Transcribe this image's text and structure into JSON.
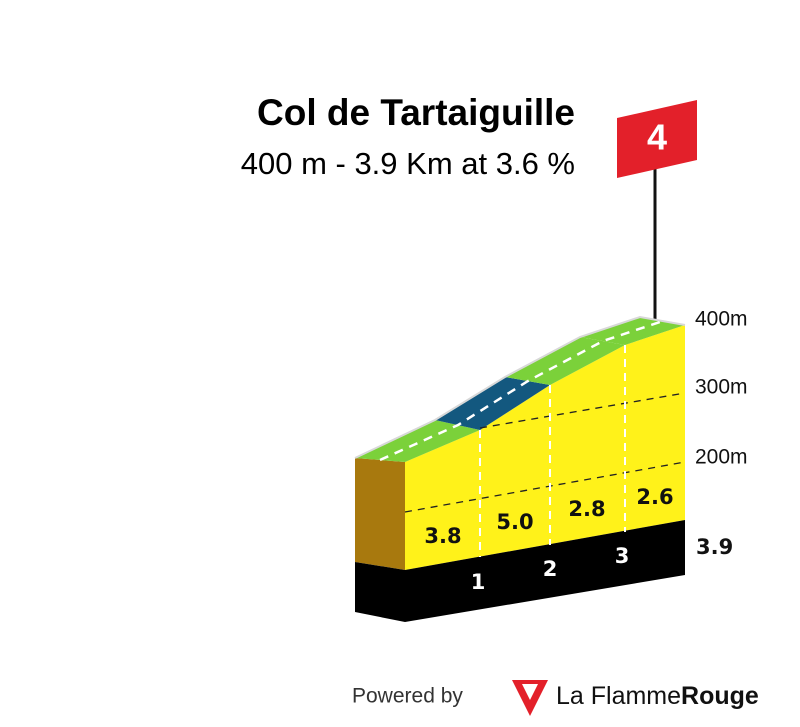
{
  "header": {
    "title": "Col de Tartaiguille",
    "subtitle": "400 m - 3.9 Km at 3.6 %",
    "category": "4"
  },
  "elevation_labels": [
    "400m",
    "300m",
    "200m"
  ],
  "gradients": [
    "3.8",
    "5.0",
    "2.8",
    "2.6"
  ],
  "km_markers": [
    "1",
    "2",
    "3"
  ],
  "total_distance": "3.9",
  "footer": {
    "powered_by": "Powered by",
    "brand_light": "La Flamme",
    "brand_bold": "Rouge"
  }
}
